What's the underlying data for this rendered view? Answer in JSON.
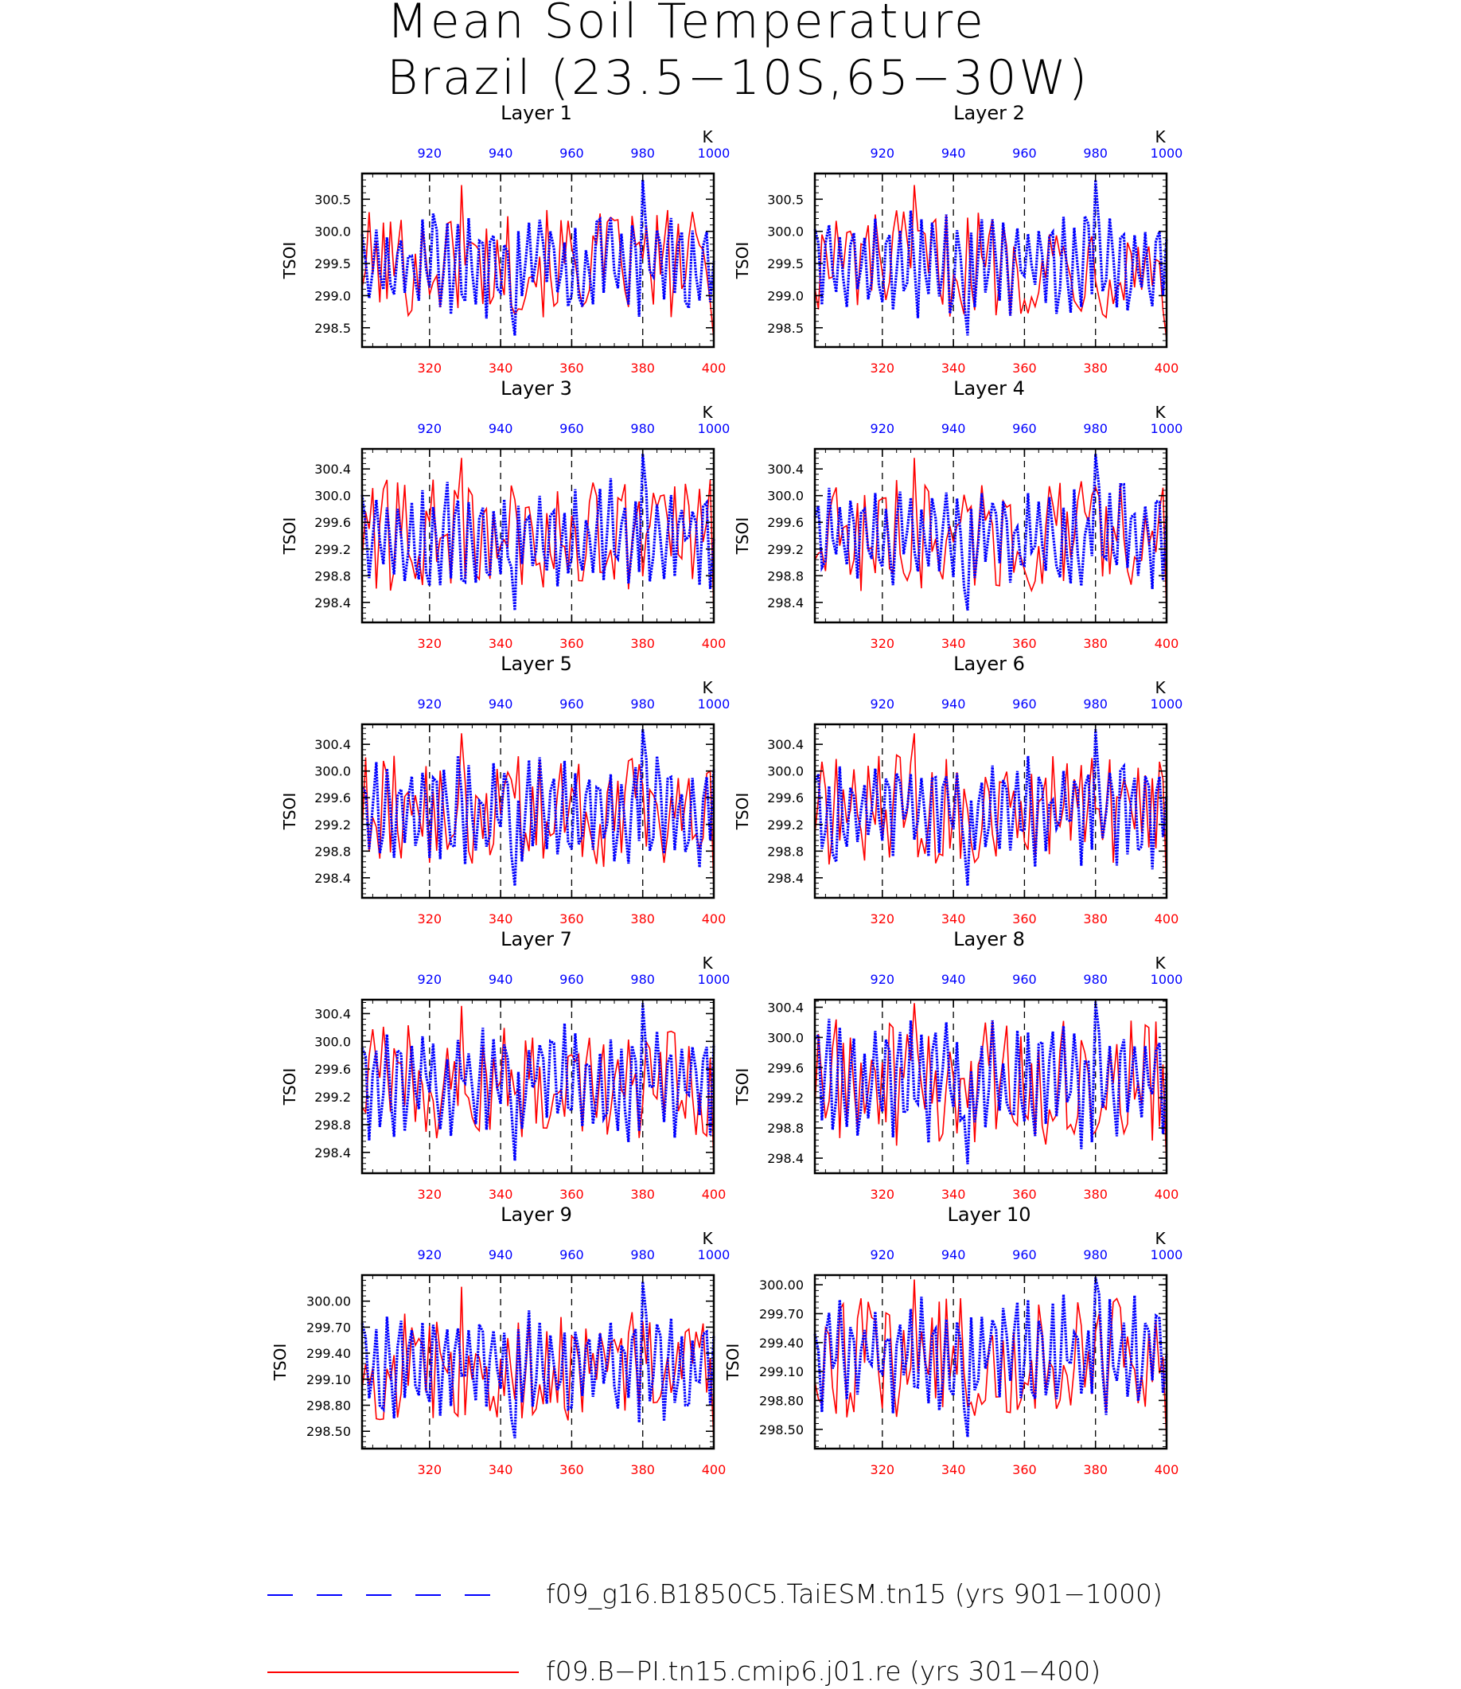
{
  "figure": {
    "title_line1": "Mean Soil Temperature",
    "title_line2": "Brazil (23.5−10S,65−30W)"
  },
  "colors": {
    "pi": "#ff0000",
    "taiesm": "#0000ff"
  },
  "legend": {
    "entries": [
      {
        "label": "f09_g16.B1850C5.TaiESM.tn15 (yrs 901−1000)",
        "style": "dashed",
        "color": "#0000ff"
      },
      {
        "label": "f09.B−PI.tn15.cmip6.j01.re (yrs 301−400)",
        "style": "solid",
        "color": "#ff0000"
      }
    ]
  },
  "chart_data": [
    {
      "type": "line",
      "title": "Layer 1",
      "ylabel": "TSOI",
      "ylim": [
        298.2,
        300.9
      ],
      "yticks": [
        298.5,
        299.0,
        299.5,
        300.0,
        300.5
      ],
      "ytick_labels": [
        "298.5",
        "299.0",
        "299.5",
        "300.0",
        "300.5"
      ],
      "xlim_bottom": [
        301,
        400
      ],
      "xticks_bottom": [
        320,
        340,
        360,
        380,
        400
      ],
      "xlim_top": [
        901,
        1000
      ],
      "xticks_top": [
        920,
        940,
        960,
        980,
        1000
      ],
      "top_unit": "K",
      "series": [
        {
          "name": "f09_g16.B1850C5.TaiESM.tn15 (yrs 901−1000)",
          "axis": "top",
          "style": "dashed",
          "color": "#0000ff"
        },
        {
          "name": "f09.B−PI.tn15.cmip6.j01.re (yrs 301−400)",
          "axis": "bottom",
          "style": "solid",
          "color": "#ff0000"
        }
      ]
    },
    {
      "type": "line",
      "title": "Layer 2",
      "ylabel": "TSOI",
      "ylim": [
        298.2,
        300.9
      ],
      "yticks": [
        298.5,
        299.0,
        299.5,
        300.0,
        300.5
      ],
      "ytick_labels": [
        "298.5",
        "299.0",
        "299.5",
        "300.0",
        "300.5"
      ],
      "xlim_bottom": [
        301,
        400
      ],
      "xticks_bottom": [
        320,
        340,
        360,
        380,
        400
      ],
      "xlim_top": [
        901,
        1000
      ],
      "xticks_top": [
        920,
        940,
        960,
        980,
        1000
      ],
      "top_unit": "K",
      "series": [
        {
          "name": "f09_g16.B1850C5.TaiESM.tn15 (yrs 901−1000)",
          "axis": "top",
          "style": "dashed",
          "color": "#0000ff"
        },
        {
          "name": "f09.B−PI.tn15.cmip6.j01.re (yrs 301−400)",
          "axis": "bottom",
          "style": "solid",
          "color": "#ff0000"
        }
      ]
    },
    {
      "type": "line",
      "title": "Layer 3",
      "ylabel": "TSOI",
      "ylim": [
        298.1,
        300.7
      ],
      "yticks": [
        298.4,
        298.8,
        299.2,
        299.6,
        300.0,
        300.4
      ],
      "ytick_labels": [
        "298.4",
        "298.8",
        "299.2",
        "299.6",
        "300.0",
        "300.4"
      ],
      "xlim_bottom": [
        301,
        400
      ],
      "xticks_bottom": [
        320,
        340,
        360,
        380,
        400
      ],
      "xlim_top": [
        901,
        1000
      ],
      "xticks_top": [
        920,
        940,
        960,
        980,
        1000
      ],
      "top_unit": "K",
      "series": [
        {
          "name": "f09_g16.B1850C5.TaiESM.tn15 (yrs 901−1000)",
          "axis": "top",
          "style": "dashed",
          "color": "#0000ff"
        },
        {
          "name": "f09.B−PI.tn15.cmip6.j01.re (yrs 301−400)",
          "axis": "bottom",
          "style": "solid",
          "color": "#ff0000"
        }
      ]
    },
    {
      "type": "line",
      "title": "Layer 4",
      "ylabel": "TSOI",
      "ylim": [
        298.1,
        300.7
      ],
      "yticks": [
        298.4,
        298.8,
        299.2,
        299.6,
        300.0,
        300.4
      ],
      "ytick_labels": [
        "298.4",
        "298.8",
        "299.2",
        "299.6",
        "300.0",
        "300.4"
      ],
      "xlim_bottom": [
        301,
        400
      ],
      "xticks_bottom": [
        320,
        340,
        360,
        380,
        400
      ],
      "xlim_top": [
        901,
        1000
      ],
      "xticks_top": [
        920,
        940,
        960,
        980,
        1000
      ],
      "top_unit": "K",
      "series": [
        {
          "name": "f09_g16.B1850C5.TaiESM.tn15 (yrs 901−1000)",
          "axis": "top",
          "style": "dashed",
          "color": "#0000ff"
        },
        {
          "name": "f09.B−PI.tn15.cmip6.j01.re (yrs 301−400)",
          "axis": "bottom",
          "style": "solid",
          "color": "#ff0000"
        }
      ]
    },
    {
      "type": "line",
      "title": "Layer 5",
      "ylabel": "TSOI",
      "ylim": [
        298.1,
        300.7
      ],
      "yticks": [
        298.4,
        298.8,
        299.2,
        299.6,
        300.0,
        300.4
      ],
      "ytick_labels": [
        "298.4",
        "298.8",
        "299.2",
        "299.6",
        "300.0",
        "300.4"
      ],
      "xlim_bottom": [
        301,
        400
      ],
      "xticks_bottom": [
        320,
        340,
        360,
        380,
        400
      ],
      "xlim_top": [
        901,
        1000
      ],
      "xticks_top": [
        920,
        940,
        960,
        980,
        1000
      ],
      "top_unit": "K",
      "series": [
        {
          "name": "f09_g16.B1850C5.TaiESM.tn15 (yrs 901−1000)",
          "axis": "top",
          "style": "dashed",
          "color": "#0000ff"
        },
        {
          "name": "f09.B−PI.tn15.cmip6.j01.re (yrs 301−400)",
          "axis": "bottom",
          "style": "solid",
          "color": "#ff0000"
        }
      ]
    },
    {
      "type": "line",
      "title": "Layer 6",
      "ylabel": "TSOI",
      "ylim": [
        298.1,
        300.7
      ],
      "yticks": [
        298.4,
        298.8,
        299.2,
        299.6,
        300.0,
        300.4
      ],
      "ytick_labels": [
        "298.4",
        "298.8",
        "299.2",
        "299.6",
        "300.0",
        "300.4"
      ],
      "xlim_bottom": [
        301,
        400
      ],
      "xticks_bottom": [
        320,
        340,
        360,
        380,
        400
      ],
      "xlim_top": [
        901,
        1000
      ],
      "xticks_top": [
        920,
        940,
        960,
        980,
        1000
      ],
      "top_unit": "K",
      "series": [
        {
          "name": "f09_g16.B1850C5.TaiESM.tn15 (yrs 901−1000)",
          "axis": "top",
          "style": "dashed",
          "color": "#0000ff"
        },
        {
          "name": "f09.B−PI.tn15.cmip6.j01.re (yrs 301−400)",
          "axis": "bottom",
          "style": "solid",
          "color": "#ff0000"
        }
      ]
    },
    {
      "type": "line",
      "title": "Layer 7",
      "ylabel": "TSOI",
      "ylim": [
        298.1,
        300.6
      ],
      "yticks": [
        298.4,
        298.8,
        299.2,
        299.6,
        300.0,
        300.4
      ],
      "ytick_labels": [
        "298.4",
        "298.8",
        "299.2",
        "299.6",
        "300.0",
        "300.4"
      ],
      "xlim_bottom": [
        301,
        400
      ],
      "xticks_bottom": [
        320,
        340,
        360,
        380,
        400
      ],
      "xlim_top": [
        901,
        1000
      ],
      "xticks_top": [
        920,
        940,
        960,
        980,
        1000
      ],
      "top_unit": "K",
      "series": [
        {
          "name": "f09_g16.B1850C5.TaiESM.tn15 (yrs 901−1000)",
          "axis": "top",
          "style": "dashed",
          "color": "#0000ff"
        },
        {
          "name": "f09.B−PI.tn15.cmip6.j01.re (yrs 301−400)",
          "axis": "bottom",
          "style": "solid",
          "color": "#ff0000"
        }
      ]
    },
    {
      "type": "line",
      "title": "Layer 8",
      "ylabel": "TSOI",
      "ylim": [
        298.2,
        300.5
      ],
      "yticks": [
        298.4,
        298.8,
        299.2,
        299.6,
        300.0,
        300.4
      ],
      "ytick_labels": [
        "298.4",
        "298.8",
        "299.2",
        "299.6",
        "300.0",
        "300.4"
      ],
      "xlim_bottom": [
        301,
        400
      ],
      "xticks_bottom": [
        320,
        340,
        360,
        380,
        400
      ],
      "xlim_top": [
        901,
        1000
      ],
      "xticks_top": [
        920,
        940,
        960,
        980,
        1000
      ],
      "top_unit": "K",
      "series": [
        {
          "name": "f09_g16.B1850C5.TaiESM.tn15 (yrs 901−1000)",
          "axis": "top",
          "style": "dashed",
          "color": "#0000ff"
        },
        {
          "name": "f09.B−PI.tn15.cmip6.j01.re (yrs 301−400)",
          "axis": "bottom",
          "style": "solid",
          "color": "#ff0000"
        }
      ]
    },
    {
      "type": "line",
      "title": "Layer 9",
      "ylabel": "TSOI",
      "ylim": [
        298.3,
        300.3
      ],
      "yticks": [
        298.5,
        298.8,
        299.1,
        299.4,
        299.7,
        300.0
      ],
      "ytick_labels": [
        "298.50",
        "298.80",
        "299.10",
        "299.40",
        "299.70",
        "300.00"
      ],
      "xlim_bottom": [
        301,
        400
      ],
      "xticks_bottom": [
        320,
        340,
        360,
        380,
        400
      ],
      "xlim_top": [
        901,
        1000
      ],
      "xticks_top": [
        920,
        940,
        960,
        980,
        1000
      ],
      "top_unit": "K",
      "series": [
        {
          "name": "f09_g16.B1850C5.TaiESM.tn15 (yrs 901−1000)",
          "axis": "top",
          "style": "dashed",
          "color": "#0000ff"
        },
        {
          "name": "f09.B−PI.tn15.cmip6.j01.re (yrs 301−400)",
          "axis": "bottom",
          "style": "solid",
          "color": "#ff0000"
        }
      ]
    },
    {
      "type": "line",
      "title": "Layer 10",
      "ylabel": "TSOI",
      "ylim": [
        298.3,
        300.1
      ],
      "yticks": [
        298.5,
        298.8,
        299.1,
        299.4,
        299.7,
        300.0
      ],
      "ytick_labels": [
        "298.50",
        "298.80",
        "299.10",
        "299.40",
        "299.70",
        "300.00"
      ],
      "xlim_bottom": [
        301,
        400
      ],
      "xticks_bottom": [
        320,
        340,
        360,
        380,
        400
      ],
      "xlim_top": [
        901,
        1000
      ],
      "xticks_top": [
        920,
        940,
        960,
        980,
        1000
      ],
      "top_unit": "K",
      "series": [
        {
          "name": "f09_g16.B1850C5.TaiESM.tn15 (yrs 901−1000)",
          "axis": "top",
          "style": "dashed",
          "color": "#0000ff"
        },
        {
          "name": "f09.B−PI.tn15.cmip6.j01.re (yrs 301−400)",
          "axis": "bottom",
          "style": "solid",
          "color": "#ff0000"
        }
      ]
    }
  ]
}
